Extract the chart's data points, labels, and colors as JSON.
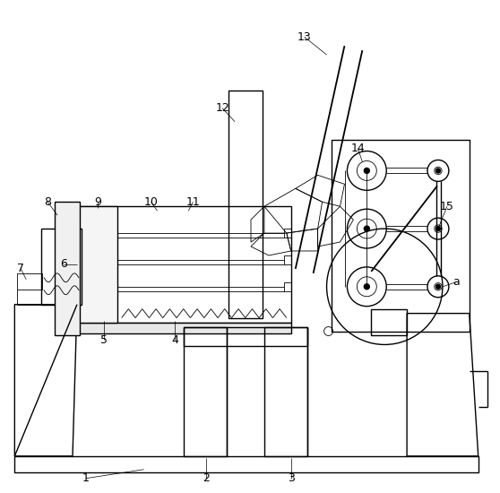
{
  "bg_color": "#ffffff",
  "line_color": "#000000",
  "lw": 1.0,
  "tlw": 0.6,
  "fig_width": 5.58,
  "fig_height": 5.5,
  "dpi": 100
}
